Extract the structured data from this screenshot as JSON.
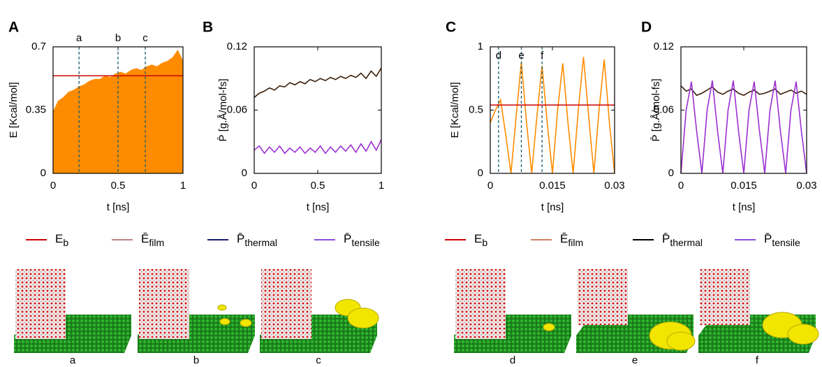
{
  "chart_data": [
    {
      "type": "line",
      "panel": "A",
      "xlabel": "t [ns]",
      "ylabel": "E [Kcal/mol]",
      "xlim": [
        0,
        1
      ],
      "ylim": [
        0,
        0.7
      ],
      "xticks": [
        0,
        0.5,
        1
      ],
      "yticks": [
        0,
        0.35,
        0.7
      ],
      "x": [
        0,
        0.04,
        0.08,
        0.12,
        0.16,
        0.2,
        0.24,
        0.28,
        0.32,
        0.36,
        0.4,
        0.44,
        0.48,
        0.52,
        0.56,
        0.6,
        0.64,
        0.68,
        0.72,
        0.76,
        0.8,
        0.84,
        0.88,
        0.92,
        0.96,
        1
      ],
      "series": [
        {
          "type": "area",
          "color": "#ff8c00",
          "values": [
            0.34,
            0.4,
            0.42,
            0.45,
            0.46,
            0.48,
            0.49,
            0.51,
            0.52,
            0.52,
            0.54,
            0.53,
            0.55,
            0.56,
            0.55,
            0.57,
            0.58,
            0.57,
            0.59,
            0.6,
            0.59,
            0.61,
            0.62,
            0.64,
            0.68,
            0.62
          ]
        },
        {
          "type": "line",
          "color": "#cc0000",
          "x": [
            0,
            1
          ],
          "values": [
            0.54,
            0.54
          ]
        }
      ],
      "markers": [
        {
          "label": "a",
          "x": 0.2
        },
        {
          "label": "b",
          "x": 0.5
        },
        {
          "label": "c",
          "x": 0.71
        }
      ]
    },
    {
      "type": "line",
      "panel": "B",
      "xlabel": "t [ns]",
      "ylabel": "P̄ [g.Å/mol-fs]",
      "xlim": [
        0,
        1
      ],
      "ylim": [
        0,
        0.12
      ],
      "xticks": [
        0,
        0.5,
        1
      ],
      "yticks": [
        0,
        0.06,
        0.12
      ],
      "x": [
        0,
        0.04,
        0.08,
        0.12,
        0.16,
        0.2,
        0.24,
        0.28,
        0.32,
        0.36,
        0.4,
        0.44,
        0.48,
        0.52,
        0.56,
        0.6,
        0.64,
        0.68,
        0.72,
        0.76,
        0.8,
        0.84,
        0.88,
        0.92,
        0.96,
        1
      ],
      "series": [
        {
          "type": "line",
          "color": "#3b1f0a",
          "values": [
            0.072,
            0.076,
            0.078,
            0.081,
            0.079,
            0.083,
            0.082,
            0.086,
            0.084,
            0.087,
            0.085,
            0.089,
            0.087,
            0.09,
            0.088,
            0.091,
            0.089,
            0.092,
            0.09,
            0.093,
            0.091,
            0.095,
            0.09,
            0.097,
            0.092,
            0.1
          ]
        },
        {
          "type": "line",
          "color": "#9b30d0",
          "values": [
            0.022,
            0.026,
            0.019,
            0.025,
            0.02,
            0.026,
            0.019,
            0.024,
            0.02,
            0.025,
            0.019,
            0.024,
            0.02,
            0.026,
            0.019,
            0.025,
            0.02,
            0.026,
            0.021,
            0.027,
            0.02,
            0.028,
            0.021,
            0.03,
            0.022,
            0.032
          ]
        }
      ]
    },
    {
      "type": "line",
      "panel": "C",
      "xlabel": "t [ns]",
      "ylabel": "E [Kcal/mol]",
      "xlim": [
        0,
        0.03
      ],
      "ylim": [
        0,
        1
      ],
      "xticks": [
        0,
        0.015,
        0.03
      ],
      "yticks": [
        0,
        0.5,
        1
      ],
      "x": [
        0,
        0.00125,
        0.0025,
        0.00375,
        0.005,
        0.00625,
        0.0075,
        0.00875,
        0.01,
        0.01125,
        0.0125,
        0.01375,
        0.015,
        0.01625,
        0.0175,
        0.01875,
        0.02,
        0.02125,
        0.0225,
        0.02375,
        0.025,
        0.02625,
        0.0275,
        0.02875,
        0.03
      ],
      "series": [
        {
          "type": "line",
          "color": "#ff8c00",
          "values": [
            0.4,
            0.5,
            0.58,
            0.3,
            0,
            0.45,
            0.88,
            0.4,
            0,
            0.45,
            0.85,
            0.4,
            0,
            0.5,
            0.87,
            0.4,
            0,
            0.5,
            0.92,
            0.45,
            0,
            0.5,
            0.9,
            0.4,
            0
          ]
        },
        {
          "type": "line",
          "color": "#cc0000",
          "x": [
            0,
            0.03
          ],
          "values": [
            0.54,
            0.54
          ]
        }
      ],
      "markers": [
        {
          "label": "d",
          "x": 0.002
        },
        {
          "label": "e",
          "x": 0.0075
        },
        {
          "label": "f",
          "x": 0.0125
        }
      ]
    },
    {
      "type": "line",
      "panel": "D",
      "xlabel": "t [ns]",
      "ylabel": "P̄ [g.Å/mol-fs]",
      "xlim": [
        0,
        0.03
      ],
      "ylim": [
        0,
        0.12
      ],
      "xticks": [
        0,
        0.015,
        0.03
      ],
      "yticks": [
        0,
        0.06,
        0.12
      ],
      "x": [
        0,
        0.00125,
        0.0025,
        0.00375,
        0.005,
        0.00625,
        0.0075,
        0.00875,
        0.01,
        0.01125,
        0.0125,
        0.01375,
        0.015,
        0.01625,
        0.0175,
        0.01875,
        0.02,
        0.02125,
        0.0225,
        0.02375,
        0.025,
        0.02625,
        0.0275,
        0.02875,
        0.03
      ],
      "series": [
        {
          "type": "line",
          "color": "#3b1f0a",
          "values": [
            0.083,
            0.078,
            0.08,
            0.074,
            0.076,
            0.079,
            0.082,
            0.077,
            0.075,
            0.078,
            0.08,
            0.076,
            0.074,
            0.077,
            0.079,
            0.075,
            0.076,
            0.078,
            0.08,
            0.075,
            0.077,
            0.079,
            0.076,
            0.078,
            0.075
          ]
        },
        {
          "type": "line",
          "color": "#9b30d0",
          "values": [
            0,
            0.06,
            0.087,
            0.04,
            0,
            0.06,
            0.088,
            0.04,
            0,
            0.06,
            0.088,
            0.04,
            0,
            0.06,
            0.087,
            0.04,
            0,
            0.06,
            0.088,
            0.04,
            0,
            0.06,
            0.087,
            0.04,
            0
          ]
        }
      ]
    }
  ],
  "legends": [
    {
      "entries": [
        {
          "name": "E",
          "sub": "b",
          "color": "#cc0000"
        },
        {
          "name": "Ē",
          "sub": "film",
          "color": "#c08080"
        },
        {
          "name": "P̄",
          "sub": "thermal",
          "color": "#1a1a6e"
        },
        {
          "name": "P̄",
          "sub": "tensile",
          "color": "#8a4fe0"
        }
      ]
    },
    {
      "entries": [
        {
          "name": "E",
          "sub": "b",
          "color": "#cc0000"
        },
        {
          "name": "Ē",
          "sub": "film",
          "color": "#d08060"
        },
        {
          "name": "P̄",
          "sub": "thermal",
          "color": "#000000"
        },
        {
          "name": "P̄",
          "sub": "tensile",
          "color": "#8a4fe0"
        }
      ]
    }
  ],
  "snapshots": [
    {
      "label": "a"
    },
    {
      "label": "b"
    },
    {
      "label": "c"
    },
    {
      "label": "d"
    },
    {
      "label": "e"
    },
    {
      "label": "f"
    }
  ]
}
